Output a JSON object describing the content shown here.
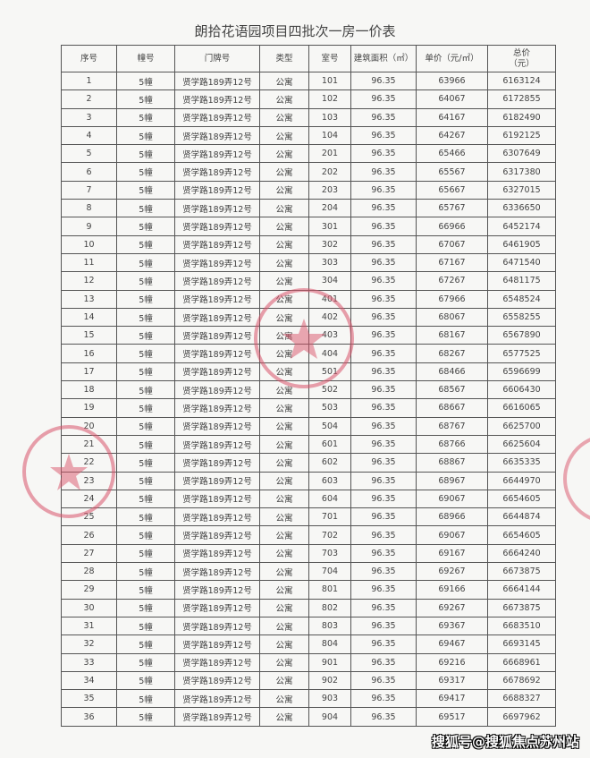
{
  "title": "朗拾花语园项目四批次一房一价表",
  "headers": [
    "序号",
    "幢号",
    "门牌号",
    "类型",
    "室号",
    "建筑面积（㎡）",
    "单价（元/㎡）",
    "总价\n（元）"
  ],
  "rows": [
    [
      "1",
      "5幢",
      "贤学路189弄12号",
      "公寓",
      "101",
      "96.35",
      "63966",
      "6163124"
    ],
    [
      "2",
      "5幢",
      "贤学路189弄12号",
      "公寓",
      "102",
      "96.35",
      "64067",
      "6172855"
    ],
    [
      "3",
      "5幢",
      "贤学路189弄12号",
      "公寓",
      "103",
      "96.35",
      "64167",
      "6182490"
    ],
    [
      "4",
      "5幢",
      "贤学路189弄12号",
      "公寓",
      "104",
      "96.35",
      "64267",
      "6192125"
    ],
    [
      "5",
      "5幢",
      "贤学路189弄12号",
      "公寓",
      "201",
      "96.35",
      "65466",
      "6307649"
    ],
    [
      "6",
      "5幢",
      "贤学路189弄12号",
      "公寓",
      "202",
      "96.35",
      "65567",
      "6317380"
    ],
    [
      "7",
      "5幢",
      "贤学路189弄12号",
      "公寓",
      "203",
      "96.35",
      "65667",
      "6327015"
    ],
    [
      "8",
      "5幢",
      "贤学路189弄12号",
      "公寓",
      "204",
      "96.35",
      "65767",
      "6336650"
    ],
    [
      "9",
      "5幢",
      "贤学路189弄12号",
      "公寓",
      "301",
      "96.35",
      "66966",
      "6452174"
    ],
    [
      "10",
      "5幢",
      "贤学路189弄12号",
      "公寓",
      "302",
      "96.35",
      "67067",
      "6461905"
    ],
    [
      "11",
      "5幢",
      "贤学路189弄12号",
      "公寓",
      "303",
      "96.35",
      "67167",
      "6471540"
    ],
    [
      "12",
      "5幢",
      "贤学路189弄12号",
      "公寓",
      "304",
      "96.35",
      "67267",
      "6481175"
    ],
    [
      "13",
      "5幢",
      "贤学路189弄12号",
      "公寓",
      "401",
      "96.35",
      "67966",
      "6548524"
    ],
    [
      "14",
      "5幢",
      "贤学路189弄12号",
      "公寓",
      "402",
      "96.35",
      "68067",
      "6558255"
    ],
    [
      "15",
      "5幢",
      "贤学路189弄12号",
      "公寓",
      "403",
      "96.35",
      "68167",
      "6567890"
    ],
    [
      "16",
      "5幢",
      "贤学路189弄12号",
      "公寓",
      "404",
      "96.35",
      "68267",
      "6577525"
    ],
    [
      "17",
      "5幢",
      "贤学路189弄12号",
      "公寓",
      "501",
      "96.35",
      "68466",
      "6596699"
    ],
    [
      "18",
      "5幢",
      "贤学路189弄12号",
      "公寓",
      "502",
      "96.35",
      "68567",
      "6606430"
    ],
    [
      "19",
      "5幢",
      "贤学路189弄12号",
      "公寓",
      "503",
      "96.35",
      "68667",
      "6616065"
    ],
    [
      "20",
      "5幢",
      "贤学路189弄12号",
      "公寓",
      "504",
      "96.35",
      "68767",
      "6625700"
    ],
    [
      "21",
      "5幢",
      "贤学路189弄12号",
      "公寓",
      "601",
      "96.35",
      "68766",
      "6625604"
    ],
    [
      "22",
      "5幢",
      "贤学路189弄12号",
      "公寓",
      "602",
      "96.35",
      "68867",
      "6635335"
    ],
    [
      "23",
      "5幢",
      "贤学路189弄12号",
      "公寓",
      "603",
      "96.35",
      "68967",
      "6644970"
    ],
    [
      "24",
      "5幢",
      "贤学路189弄12号",
      "公寓",
      "604",
      "96.35",
      "69067",
      "6654605"
    ],
    [
      "25",
      "5幢",
      "贤学路189弄12号",
      "公寓",
      "701",
      "96.35",
      "68966",
      "6644874"
    ],
    [
      "26",
      "5幢",
      "贤学路189弄12号",
      "公寓",
      "702",
      "96.35",
      "69067",
      "6654605"
    ],
    [
      "27",
      "5幢",
      "贤学路189弄12号",
      "公寓",
      "703",
      "96.35",
      "69167",
      "6664240"
    ],
    [
      "28",
      "5幢",
      "贤学路189弄12号",
      "公寓",
      "704",
      "96.35",
      "69267",
      "6673875"
    ],
    [
      "29",
      "5幢",
      "贤学路189弄12号",
      "公寓",
      "801",
      "96.35",
      "69166",
      "6664144"
    ],
    [
      "30",
      "5幢",
      "贤学路189弄12号",
      "公寓",
      "802",
      "96.35",
      "69267",
      "6673875"
    ],
    [
      "31",
      "5幢",
      "贤学路189弄12号",
      "公寓",
      "803",
      "96.35",
      "69367",
      "6683510"
    ],
    [
      "32",
      "5幢",
      "贤学路189弄12号",
      "公寓",
      "804",
      "96.35",
      "69467",
      "6693145"
    ],
    [
      "33",
      "5幢",
      "贤学路189弄12号",
      "公寓",
      "901",
      "96.35",
      "69216",
      "6668961"
    ],
    [
      "34",
      "5幢",
      "贤学路189弄12号",
      "公寓",
      "902",
      "96.35",
      "69317",
      "6678692"
    ],
    [
      "35",
      "5幢",
      "贤学路189弄12号",
      "公寓",
      "903",
      "96.35",
      "69417",
      "6688327"
    ],
    [
      "36",
      "5幢",
      "贤学路189弄12号",
      "公寓",
      "904",
      "96.35",
      "69517",
      "6697962"
    ]
  ],
  "watermark": "搜狐号@搜狐焦点苏州站",
  "colors": {
    "stamp": "#d9546a",
    "text": "#444444",
    "border": "#555555"
  }
}
